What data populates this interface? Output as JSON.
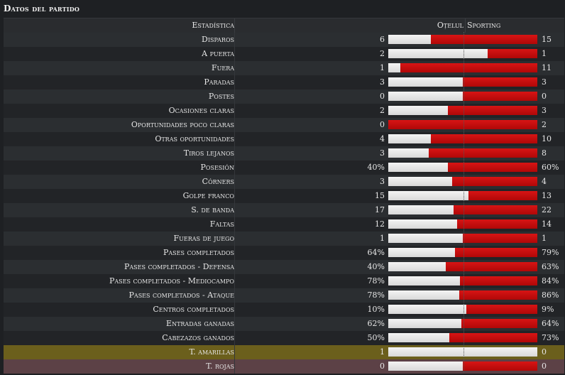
{
  "title": "Datos del partido",
  "header": {
    "stat": "Estadística",
    "home": "Oțelul",
    "away": "Sporting"
  },
  "colors": {
    "home": "#e6e6e6",
    "away": "#c40c0c",
    "yellow_row": "#6b5f1c",
    "red_row": "#5c4146"
  },
  "stats": [
    {
      "label": "Disparos",
      "home": "6",
      "away": "15",
      "home_share": 0.286
    },
    {
      "label": "A puerta",
      "home": "2",
      "away": "1",
      "home_share": 0.667
    },
    {
      "label": "Fuera",
      "home": "1",
      "away": "11",
      "home_share": 0.083
    },
    {
      "label": "Paradas",
      "home": "3",
      "away": "3",
      "home_share": 0.5
    },
    {
      "label": "Postes",
      "home": "0",
      "away": "0",
      "home_share": 0.5
    },
    {
      "label": "Ocasiones claras",
      "home": "2",
      "away": "3",
      "home_share": 0.4
    },
    {
      "label": "Oportunidades poco claras",
      "home": "0",
      "away": "2",
      "home_share": 0.0
    },
    {
      "label": "Otras oportunidades",
      "home": "4",
      "away": "10",
      "home_share": 0.286
    },
    {
      "label": "Tiros lejanos",
      "home": "3",
      "away": "8",
      "home_share": 0.273
    },
    {
      "label": "Posesión",
      "home": "40%",
      "away": "60%",
      "home_share": 0.4
    },
    {
      "label": "Córners",
      "home": "3",
      "away": "4",
      "home_share": 0.429
    },
    {
      "label": "Golpe franco",
      "home": "15",
      "away": "13",
      "home_share": 0.536
    },
    {
      "label": "S. de banda",
      "home": "17",
      "away": "22",
      "home_share": 0.436
    },
    {
      "label": "Faltas",
      "home": "12",
      "away": "14",
      "home_share": 0.462
    },
    {
      "label": "Fueras de juego",
      "home": "1",
      "away": "1",
      "home_share": 0.5
    },
    {
      "label": "Pases completados",
      "home": "64%",
      "away": "79%",
      "home_share": 0.448
    },
    {
      "label": "Pases completados - Defensa",
      "home": "40%",
      "away": "63%",
      "home_share": 0.388
    },
    {
      "label": "Pases completados - Mediocampo",
      "home": "78%",
      "away": "84%",
      "home_share": 0.481
    },
    {
      "label": "Pases completados - Ataque",
      "home": "78%",
      "away": "86%",
      "home_share": 0.476
    },
    {
      "label": "Centros completados",
      "home": "10%",
      "away": "9%",
      "home_share": 0.526
    },
    {
      "label": "Entradas ganadas",
      "home": "62%",
      "away": "64%",
      "home_share": 0.492
    },
    {
      "label": "Cabezazos ganados",
      "home": "50%",
      "away": "73%",
      "home_share": 0.41
    },
    {
      "label": "T. amarillas",
      "home": "1",
      "away": "0",
      "home_share": 1.0,
      "highlight": "yellow"
    },
    {
      "label": "T. rojas",
      "home": "0",
      "away": "0",
      "home_share": 0.5,
      "highlight": "red"
    }
  ]
}
